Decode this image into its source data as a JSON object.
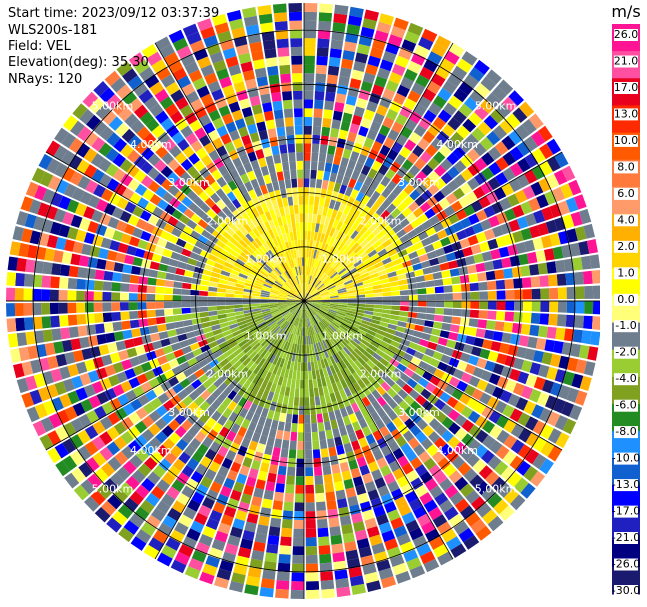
{
  "header": {
    "start_time": "Start time: 2023/09/12 03:37:39",
    "instrument": "WLS200s-181",
    "field": "Field: VEL",
    "elevation": "Elevation(deg): 35.30",
    "nrays": "NRays: 120"
  },
  "chart_data": {
    "type": "heatmap",
    "projection": "polar-ppi",
    "field": "VEL",
    "nrays": 120,
    "range_rings_km": [
      1,
      2,
      3,
      4,
      5
    ],
    "ring_labels": [
      "1.00km",
      "2.00km",
      "3.00km",
      "4.00km",
      "5.00km"
    ],
    "colorbar": {
      "unit": "m/s",
      "ticks": [
        "26.0",
        "21.0",
        "17.0",
        "13.0",
        "10.0",
        "8.0",
        "6.0",
        "4.0",
        "2.0",
        "1.0",
        "0.0",
        "-1.0",
        "-2.0",
        "-4.0",
        "-6.0",
        "-8.0",
        "-10.0",
        "-13.0",
        "-17.0",
        "-21.0",
        "-26.0",
        "-30.0"
      ],
      "colors": [
        "#ff1493",
        "#ff4fa0",
        "#e8001c",
        "#ff2a00",
        "#ff5a00",
        "#ff7a3c",
        "#ff9a6a",
        "#ffb000",
        "#ffd400",
        "#ffff00",
        "#ffff7a",
        "#6e7e8e",
        "#9acd32",
        "#80a020",
        "#228b22",
        "#1e90ff",
        "#1060d0",
        "#0000ff",
        "#2020c0",
        "#000080",
        "#1a1a6e"
      ]
    },
    "near_field": {
      "toward_north": "yellow (positive velocity)",
      "toward_south": "green (negative velocity)"
    }
  }
}
